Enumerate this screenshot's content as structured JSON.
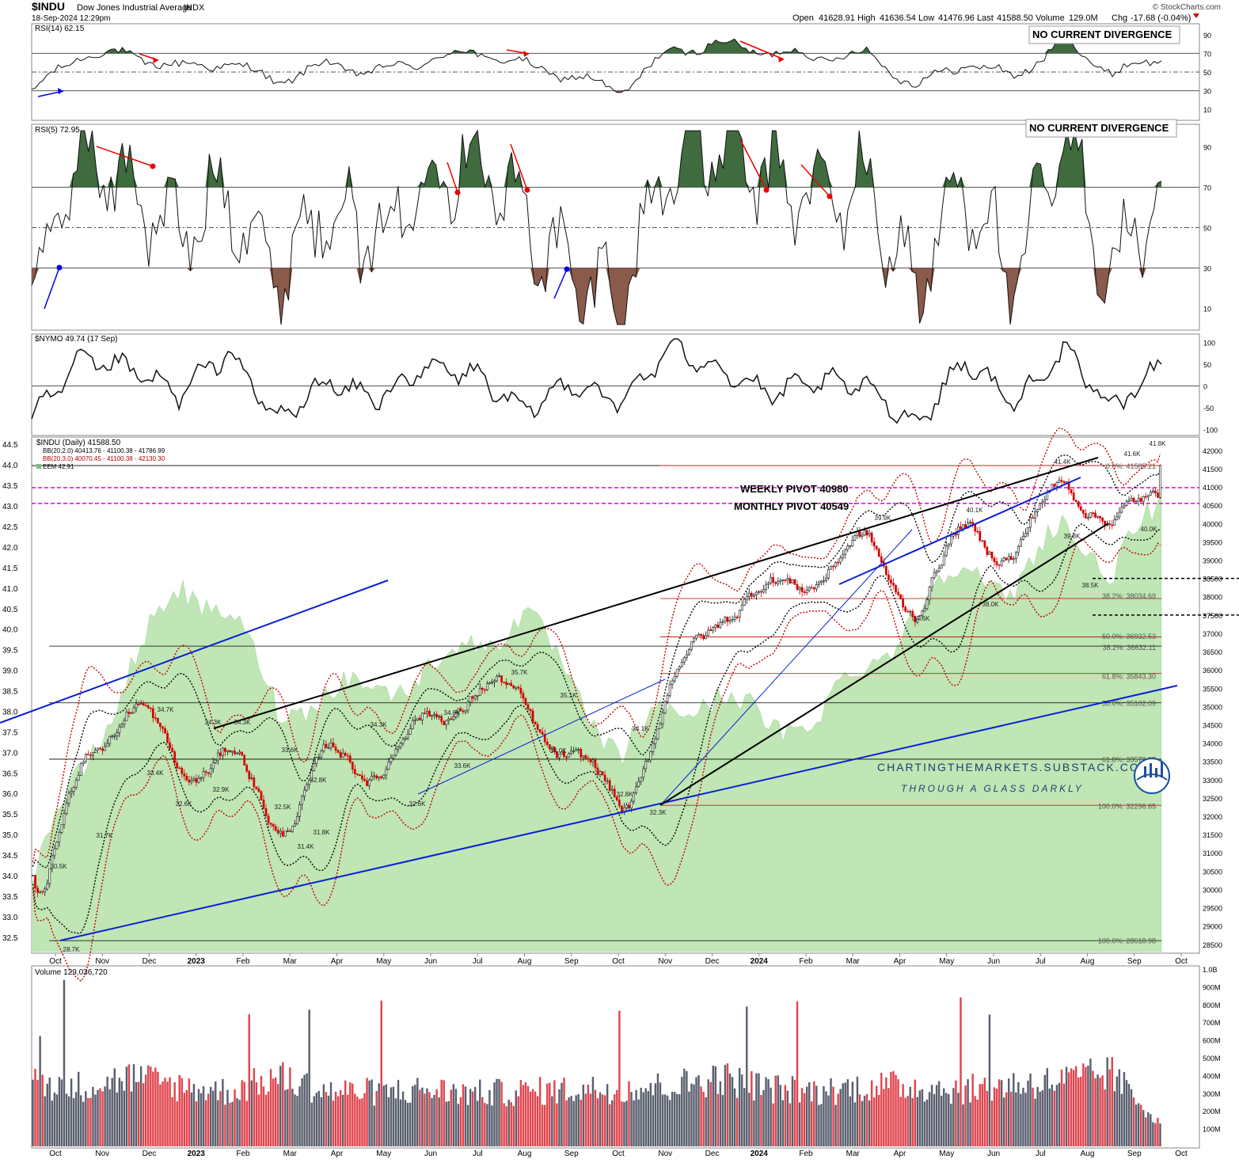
{
  "header": {
    "symbol": "$INDU",
    "name": "Dow Jones Industrial Average",
    "exchange": "INDX",
    "timestamp": "18-Sep-2024 12:29pm",
    "brand": "© StockCharts.com",
    "quote": {
      "open_label": "Open",
      "open": "41628.91",
      "high_label": "High",
      "high": "41636.54",
      "low_label": "Low",
      "low": "41476.96",
      "last_label": "Last",
      "last": "41588.50",
      "volume_label": "Volume",
      "volume": "129.0M",
      "chg_label": "Chg",
      "chg": "-17.68 (-0.04%)"
    }
  },
  "colors": {
    "up": "#111111",
    "down": "#d40000",
    "ema_fill": "#bfe6b4",
    "blue": "#0a1fd6",
    "pivot": "#e000e0",
    "overbought": "#3f6b3f",
    "oversold": "#8a5a4a"
  },
  "rsi14": {
    "label": "RSI(14) 62.15",
    "divergence_note": "NO CURRENT DIVERGENCE",
    "ticks": [
      90,
      70,
      50,
      30,
      10
    ]
  },
  "rsi5": {
    "label": "RSI(5) 72.95",
    "divergence_note": "NO CURRENT DIVERGENCE",
    "ticks": [
      90,
      70,
      50,
      30,
      10
    ]
  },
  "nymo": {
    "label": "$NYMO 49.74 (17 Sep)",
    "ticks": [
      100,
      50,
      0,
      -50,
      -100
    ]
  },
  "price_panel": {
    "legend": [
      {
        "text": "$INDU (Daily) 41588.50"
      },
      {
        "text": "BB(20,2.0) 40413.76 - 41100.38 - 41786.99"
      },
      {
        "text": "BB(20,3.0) 40070.45 - 41100.38 - 42130.30"
      },
      {
        "text": "EEM 42.91"
      }
    ],
    "pivot_labels": [
      "WEEKLY PIVOT 40980",
      "MONTHLY PIVOT 40549"
    ],
    "watermark": [
      "CHARTINGTHEMARKETS.SUBSTACK.COM",
      "THROUGH A GLASS DARKLY"
    ],
    "left_ticks": [
      "44.5",
      "44.0",
      "43.5",
      "43.0",
      "42.5",
      "42.0",
      "41.5",
      "41.0",
      "40.5",
      "40.0",
      "39.5",
      "39.0",
      "38.5",
      "38.0",
      "37.5",
      "37.0",
      "36.5",
      "36.0",
      "35.5",
      "35.0",
      "34.5",
      "34.0",
      "33.5",
      "33.0",
      "32.5"
    ],
    "right_ticks": [
      "42000",
      "41500",
      "41000",
      "40500",
      "40000",
      "39500",
      "39000",
      "38500",
      "38000",
      "37500",
      "37000",
      "36500",
      "36000",
      "35500",
      "35000",
      "34500",
      "34000",
      "33500",
      "33000",
      "32500",
      "32000",
      "31500",
      "31000",
      "30500",
      "30000",
      "29500",
      "29000",
      "28500"
    ],
    "fib_labels": [
      "0.0%: 41585.21",
      "38.2%: 38034.69",
      "50.0%: 36932.53",
      "38.2%: 36632.11",
      "61.8%: 35843.30",
      "50.0%: 35102.09",
      "61.8%: 33572.08",
      "100.0%: 32296.65",
      "100.0%: 28618.98"
    ],
    "peak_labels": [
      "30.5K",
      "28.7K",
      "31.7K",
      "34.7K",
      "33.4K",
      "32.6K",
      "34.3K",
      "34.3K",
      "32.9K",
      "33.6K",
      "32.5K",
      "31.8K",
      "31.4K",
      "32.8K",
      "34.3K",
      "32.6K",
      "34.6K",
      "33.6K",
      "35.7K",
      "35.1K",
      "34.0K",
      "34.1K",
      "32.8K",
      "32.3K",
      "39.9K",
      "37.6K",
      "40.1K",
      "38.0K",
      "41.4K",
      "39.8K",
      "38.5K",
      "41.6K",
      "40.0K",
      "41.8K"
    ],
    "month_labels": [
      "Oct",
      "Nov",
      "Dec",
      "2023",
      "Feb",
      "Mar",
      "Apr",
      "May",
      "Jun",
      "Jul",
      "Aug",
      "Sep",
      "Oct",
      "Nov",
      "Dec",
      "2024",
      "Feb",
      "Mar",
      "Apr",
      "May",
      "Jun",
      "Jul",
      "Aug",
      "Sep",
      "Oct"
    ]
  },
  "volume_panel": {
    "label": "Volume 129,036,720",
    "ticks": [
      "1.0B",
      "900M",
      "800M",
      "700M",
      "600M",
      "500M",
      "400M",
      "300M",
      "200M",
      "100M"
    ]
  },
  "chart_data": [
    {
      "type": "line",
      "title": "RSI(14)",
      "ylim": [
        0,
        100
      ],
      "ref_lines": [
        70,
        50,
        30
      ],
      "x": [
        "2022-10",
        "2022-11",
        "2022-12",
        "2023-01",
        "2023-02",
        "2023-03",
        "2023-04",
        "2023-05",
        "2023-06",
        "2023-07",
        "2023-08",
        "2023-09",
        "2023-10",
        "2023-11",
        "2023-12",
        "2024-01",
        "2024-02",
        "2024-03",
        "2024-04",
        "2024-05",
        "2024-06",
        "2024-07",
        "2024-08",
        "2024-09"
      ],
      "series": [
        {
          "values": [
            28,
            70,
            68,
            55,
            60,
            40,
            58,
            50,
            62,
            72,
            58,
            45,
            30,
            72,
            80,
            72,
            66,
            70,
            35,
            60,
            45,
            82,
            50,
            62
          ]
        }
      ]
    },
    {
      "type": "line",
      "title": "RSI(5)",
      "ylim": [
        0,
        100
      ],
      "ref_lines": [
        70,
        50,
        30
      ],
      "x": [
        "2022-10",
        "2022-11",
        "2022-12",
        "2023-01",
        "2023-02",
        "2023-03",
        "2023-04",
        "2023-05",
        "2023-06",
        "2023-07",
        "2023-08",
        "2023-09",
        "2023-10",
        "2023-11",
        "2023-12",
        "2024-01",
        "2024-02",
        "2024-03",
        "2024-04",
        "2024-05",
        "2024-06",
        "2024-07",
        "2024-08",
        "2024-09"
      ],
      "series": [
        {
          "values": [
            15,
            88,
            70,
            45,
            70,
            25,
            65,
            40,
            75,
            88,
            55,
            25,
            15,
            85,
            90,
            75,
            65,
            70,
            18,
            75,
            20,
            95,
            25,
            73
          ]
        }
      ]
    },
    {
      "type": "line",
      "title": "$NYMO",
      "ylim": [
        -100,
        100
      ],
      "ref_lines": [
        0
      ],
      "x": [
        "2022-10",
        "2022-11",
        "2022-12",
        "2023-01",
        "2023-02",
        "2023-03",
        "2023-04",
        "2023-05",
        "2023-06",
        "2023-07",
        "2023-08",
        "2023-09",
        "2023-10",
        "2023-11",
        "2023-12",
        "2024-01",
        "2024-02",
        "2024-03",
        "2024-04",
        "2024-05",
        "2024-06",
        "2024-07",
        "2024-08",
        "2024-09"
      ],
      "series": [
        {
          "values": [
            -80,
            60,
            40,
            -20,
            80,
            -80,
            10,
            -30,
            40,
            30,
            -60,
            10,
            -40,
            90,
            40,
            -20,
            10,
            0,
            -90,
            60,
            -40,
            80,
            -50,
            50
          ]
        }
      ]
    },
    {
      "type": "line",
      "title": "$INDU (Daily)",
      "ylim": [
        28300,
        42300
      ],
      "x": [
        "2022-10",
        "2022-11",
        "2022-12",
        "2023-01",
        "2023-02",
        "2023-03",
        "2023-04",
        "2023-05",
        "2023-06",
        "2023-07",
        "2023-08",
        "2023-09",
        "2023-10",
        "2023-11",
        "2023-12",
        "2024-01",
        "2024-02",
        "2024-03",
        "2024-04",
        "2024-05",
        "2024-06",
        "2024-07",
        "2024-08",
        "2024-09"
      ],
      "series": [
        {
          "name": "$INDU",
          "values": [
            28700,
            33800,
            34600,
            33300,
            33800,
            32000,
            33700,
            33100,
            34300,
            35500,
            35200,
            33700,
            32400,
            35400,
            37500,
            37900,
            39000,
            39700,
            37700,
            39900,
            38700,
            41300,
            39800,
            41588.5
          ]
        },
        {
          "name": "EEM",
          "values": [
            34.0,
            36.5,
            39.0,
            41.0,
            40.5,
            38.0,
            38.5,
            38.5,
            39.0,
            39.5,
            40.5,
            38.5,
            37.0,
            38.0,
            38.5,
            37.5,
            38.0,
            39.0,
            40.5,
            41.5,
            41.0,
            42.5,
            41.5,
            42.91
          ]
        }
      ],
      "ref_lines": {
        "weekly_pivot": 40980,
        "monthly_pivot": 40549
      }
    },
    {
      "type": "bar",
      "title": "Volume",
      "ylim": [
        0,
        1000000000
      ],
      "x": [
        "2022-10",
        "2022-11",
        "2022-12",
        "2023-01",
        "2023-02",
        "2023-03",
        "2023-04",
        "2023-05",
        "2023-06",
        "2023-07",
        "2023-08",
        "2023-09",
        "2023-10",
        "2023-11",
        "2023-12",
        "2024-01",
        "2024-02",
        "2024-03",
        "2024-04",
        "2024-05",
        "2024-06",
        "2024-07",
        "2024-08",
        "2024-09"
      ],
      "series": [
        {
          "values": [
            350000000,
            330000000,
            380000000,
            330000000,
            300000000,
            380000000,
            300000000,
            300000000,
            310000000,
            290000000,
            300000000,
            310000000,
            320000000,
            330000000,
            380000000,
            320000000,
            300000000,
            330000000,
            330000000,
            310000000,
            340000000,
            360000000,
            400000000,
            129036720
          ]
        }
      ]
    }
  ]
}
